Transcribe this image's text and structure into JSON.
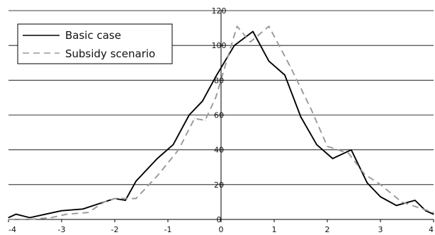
{
  "chart_data": {
    "type": "line",
    "title": "",
    "xlabel": "",
    "ylabel": "",
    "xlim": [
      -4,
      4
    ],
    "ylim": [
      0,
      120
    ],
    "x_ticks": [
      -4,
      -3,
      -2,
      -1,
      0,
      1,
      2,
      3,
      4
    ],
    "x_tick_labels": [
      "-4",
      "-3",
      "-2",
      "-1",
      "0",
      "1",
      "2",
      "3",
      "4"
    ],
    "y_ticks": [
      20,
      40,
      60,
      80,
      100,
      120
    ],
    "y_tick_labels": [
      "20",
      "40",
      "60",
      "80",
      "100",
      "120"
    ],
    "zero_label": "0",
    "grid": "horizontal",
    "legend_position": "top-left",
    "series": [
      {
        "name": "Basic case",
        "color": "#000000",
        "style": "solid",
        "points": [
          [
            -4,
            1
          ],
          [
            -3.86,
            3
          ],
          [
            -3.6,
            1
          ],
          [
            -3.3,
            3
          ],
          [
            -3.0,
            5
          ],
          [
            -2.6,
            6
          ],
          [
            -2.2,
            10
          ],
          [
            -2.0,
            12
          ],
          [
            -1.8,
            11
          ],
          [
            -1.6,
            22
          ],
          [
            -1.2,
            35
          ],
          [
            -0.9,
            43
          ],
          [
            -0.6,
            60
          ],
          [
            -0.35,
            68
          ],
          [
            -0.1,
            82
          ],
          [
            0.25,
            100
          ],
          [
            0.6,
            108
          ],
          [
            0.9,
            91
          ],
          [
            1.2,
            83
          ],
          [
            1.5,
            59
          ],
          [
            1.8,
            43
          ],
          [
            2.1,
            35
          ],
          [
            2.45,
            40
          ],
          [
            2.75,
            21
          ],
          [
            3.0,
            13
          ],
          [
            3.3,
            8
          ],
          [
            3.65,
            11
          ],
          [
            3.85,
            5
          ],
          [
            4.0,
            3
          ]
        ]
      },
      {
        "name": "Subsidy scenario",
        "color": "#999999",
        "style": "dashed",
        "points": [
          [
            -4,
            0
          ],
          [
            -3.6,
            0
          ],
          [
            -3.2,
            1
          ],
          [
            -2.9,
            3
          ],
          [
            -2.5,
            4
          ],
          [
            -2.2,
            10
          ],
          [
            -2.0,
            12
          ],
          [
            -1.6,
            12
          ],
          [
            -1.2,
            25
          ],
          [
            -0.8,
            40
          ],
          [
            -0.5,
            58
          ],
          [
            -0.3,
            57
          ],
          [
            -0.1,
            70
          ],
          [
            0.3,
            111
          ],
          [
            0.55,
            102
          ],
          [
            0.9,
            111
          ],
          [
            1.3,
            88
          ],
          [
            1.7,
            63
          ],
          [
            2.0,
            42
          ],
          [
            2.4,
            38
          ],
          [
            2.7,
            26
          ],
          [
            3.0,
            20
          ],
          [
            3.4,
            10
          ],
          [
            3.8,
            6
          ],
          [
            4.0,
            4
          ]
        ]
      }
    ]
  }
}
